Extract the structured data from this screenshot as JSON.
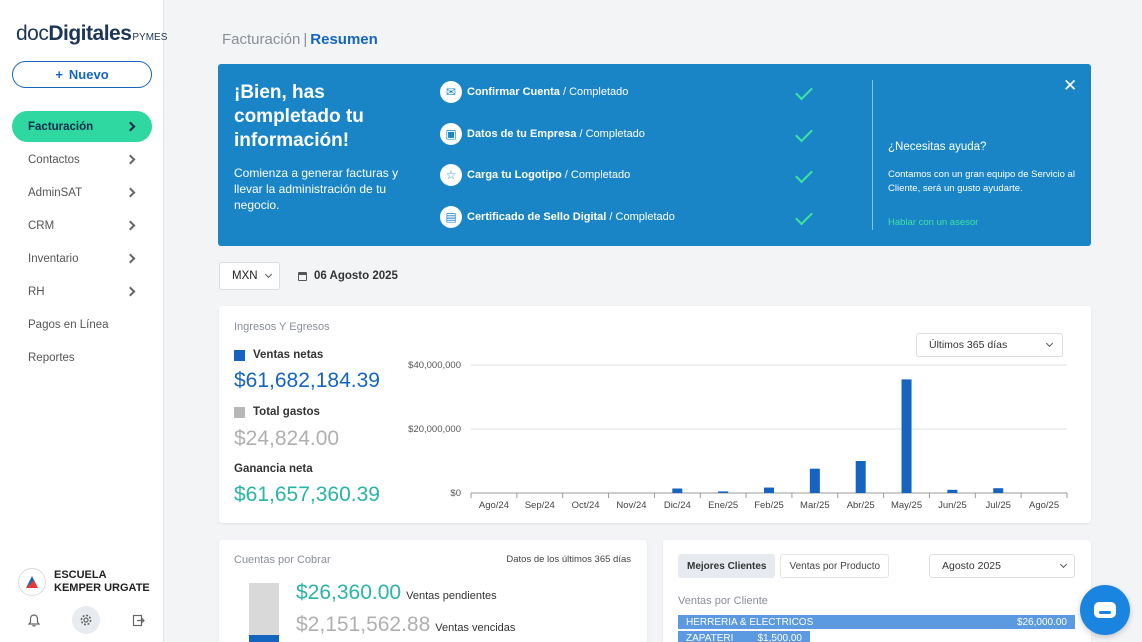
{
  "sidebar": {
    "logo": {
      "part1": "doc",
      "part2": "Digitales",
      "part3": "PYMES"
    },
    "new_button": {
      "icon": "+",
      "label": "Nuevo"
    },
    "items": [
      {
        "label": "Facturación"
      },
      {
        "label": "Contactos"
      },
      {
        "label": "AdminSAT"
      },
      {
        "label": "CRM"
      },
      {
        "label": "Inventario"
      },
      {
        "label": "RH"
      },
      {
        "label": "Pagos en Línea"
      },
      {
        "label": "Reportes"
      }
    ],
    "company": {
      "name": "ESCUELA KEMPER URGATE"
    },
    "icons": [
      "bell-icon",
      "gear-icon",
      "logout-icon"
    ]
  },
  "breadcrumb": {
    "section": "Facturación",
    "separator": "|",
    "current": "Resumen"
  },
  "banner": {
    "title": "¡Bien, has completado tu información!",
    "subtitle": "Comienza a generar facturas y llevar la administración de tu negocio.",
    "steps": [
      {
        "icon": "envelope-icon",
        "label": "Confirmar Cuenta",
        "status": "/ Completado"
      },
      {
        "icon": "briefcase-icon",
        "label": "Datos de tu Empresa",
        "status": "/ Completado"
      },
      {
        "icon": "star-icon",
        "label": "Carga tu Logotipo",
        "status": "/ Completado"
      },
      {
        "icon": "certificate-icon",
        "label": "Certificado de Sello Digital",
        "status": "/ Completado"
      }
    ],
    "help": {
      "title": "¿Necesitas ayuda?",
      "text": "Contamos con un gran equipo de Servicio al Cliente, será un gusto ayudarte.",
      "link": "Hablar con un asesor"
    },
    "close": "✕"
  },
  "filters": {
    "currency": "MXN",
    "date": "06 Agosto 2025"
  },
  "income_card": {
    "title": "Ingresos Y Egresos",
    "range": "Últimos 365 días",
    "net_sales": {
      "label": "Ventas netas",
      "value": "$61,682,184.39"
    },
    "total_expenses": {
      "label": "Total gastos",
      "value": "$24,824.00"
    },
    "net_profit": {
      "label": "Ganancia neta",
      "value": "$61,657,360.39"
    }
  },
  "chart_data": {
    "type": "bar",
    "categories": [
      "Ago/24",
      "Sep/24",
      "Oct/24",
      "Nov/24",
      "Dic/24",
      "Ene/25",
      "Feb/25",
      "Mar/25",
      "Abr/25",
      "May/25",
      "Jun/25",
      "Jul/25",
      "Ago/25"
    ],
    "values": [
      0,
      0,
      0,
      0,
      1400000,
      500000,
      1700000,
      7600000,
      10000000,
      35500000,
      1000000,
      1500000,
      0
    ],
    "yticks": [
      "$0",
      "$20,000,000",
      "$40,000,000"
    ],
    "ylim": [
      0,
      40000000
    ],
    "grid": true,
    "colors": {
      "bar": "#1565c0"
    }
  },
  "receivables_card": {
    "title": "Cuentas por Cobrar",
    "range_note": "Datos de los últimos 365 días",
    "pending": {
      "value": "$26,360.00",
      "label": "Ventas pendientes"
    },
    "overdue": {
      "value": "$2,151,562.88",
      "label": "Ventas vencidas"
    }
  },
  "clients_card": {
    "tabs": [
      {
        "label": "Mejores Clientes"
      },
      {
        "label": "Ventas por Producto"
      }
    ],
    "month": "Agosto 2025",
    "subtitle": "Ventas por Cliente",
    "rows": [
      {
        "name": "HERRERIA & ELECTRICOS",
        "amount": "$26,000.00"
      },
      {
        "name": "ZAPATERI",
        "amount": "$1,500.00"
      }
    ]
  },
  "colors": {
    "accent": "#1565c0",
    "banner": "#1985c7",
    "green": "#2ed8a0",
    "teal": "#29b5a5",
    "gray": "#b8b8b8"
  }
}
